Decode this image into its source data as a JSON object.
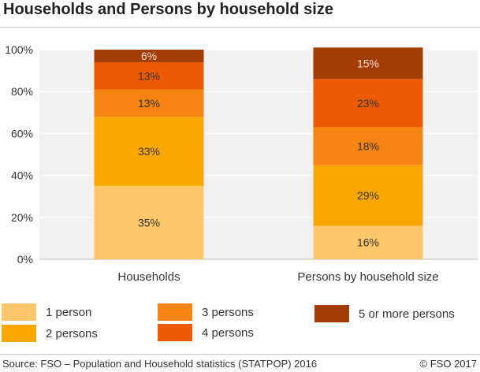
{
  "header": {
    "title": "Households and Persons by household size"
  },
  "chart_data": {
    "type": "bar",
    "stacked": true,
    "categories": [
      "Households",
      "Persons by household size"
    ],
    "series": [
      {
        "name": "1 person",
        "values": [
          35,
          16
        ],
        "labels": [
          "35%",
          "16%"
        ],
        "color": "#fdc76a"
      },
      {
        "name": "2 persons",
        "values": [
          33,
          29
        ],
        "labels": [
          "33%",
          "29%"
        ],
        "color": "#fba702"
      },
      {
        "name": "3 persons",
        "values": [
          13,
          18
        ],
        "labels": [
          "13%",
          "18%"
        ],
        "color": "#f58413"
      },
      {
        "name": "4 persons",
        "values": [
          13,
          23
        ],
        "labels": [
          "13%",
          "23%"
        ],
        "color": "#ec5a02"
      },
      {
        "name": "5 or more persons",
        "values": [
          6,
          15
        ],
        "labels": [
          "6%",
          "15%"
        ],
        "color": "#a33c04"
      }
    ],
    "ylim": [
      0,
      100
    ],
    "yticks": [
      "0%",
      "20%",
      "40%",
      "60%",
      "80%",
      "100%"
    ],
    "grid": true,
    "legend_position": "bottom"
  },
  "footer": {
    "source": "Source: FSO – Population and Household statistics (STATPOP) 2016",
    "copyright": "© FSO 2017"
  }
}
